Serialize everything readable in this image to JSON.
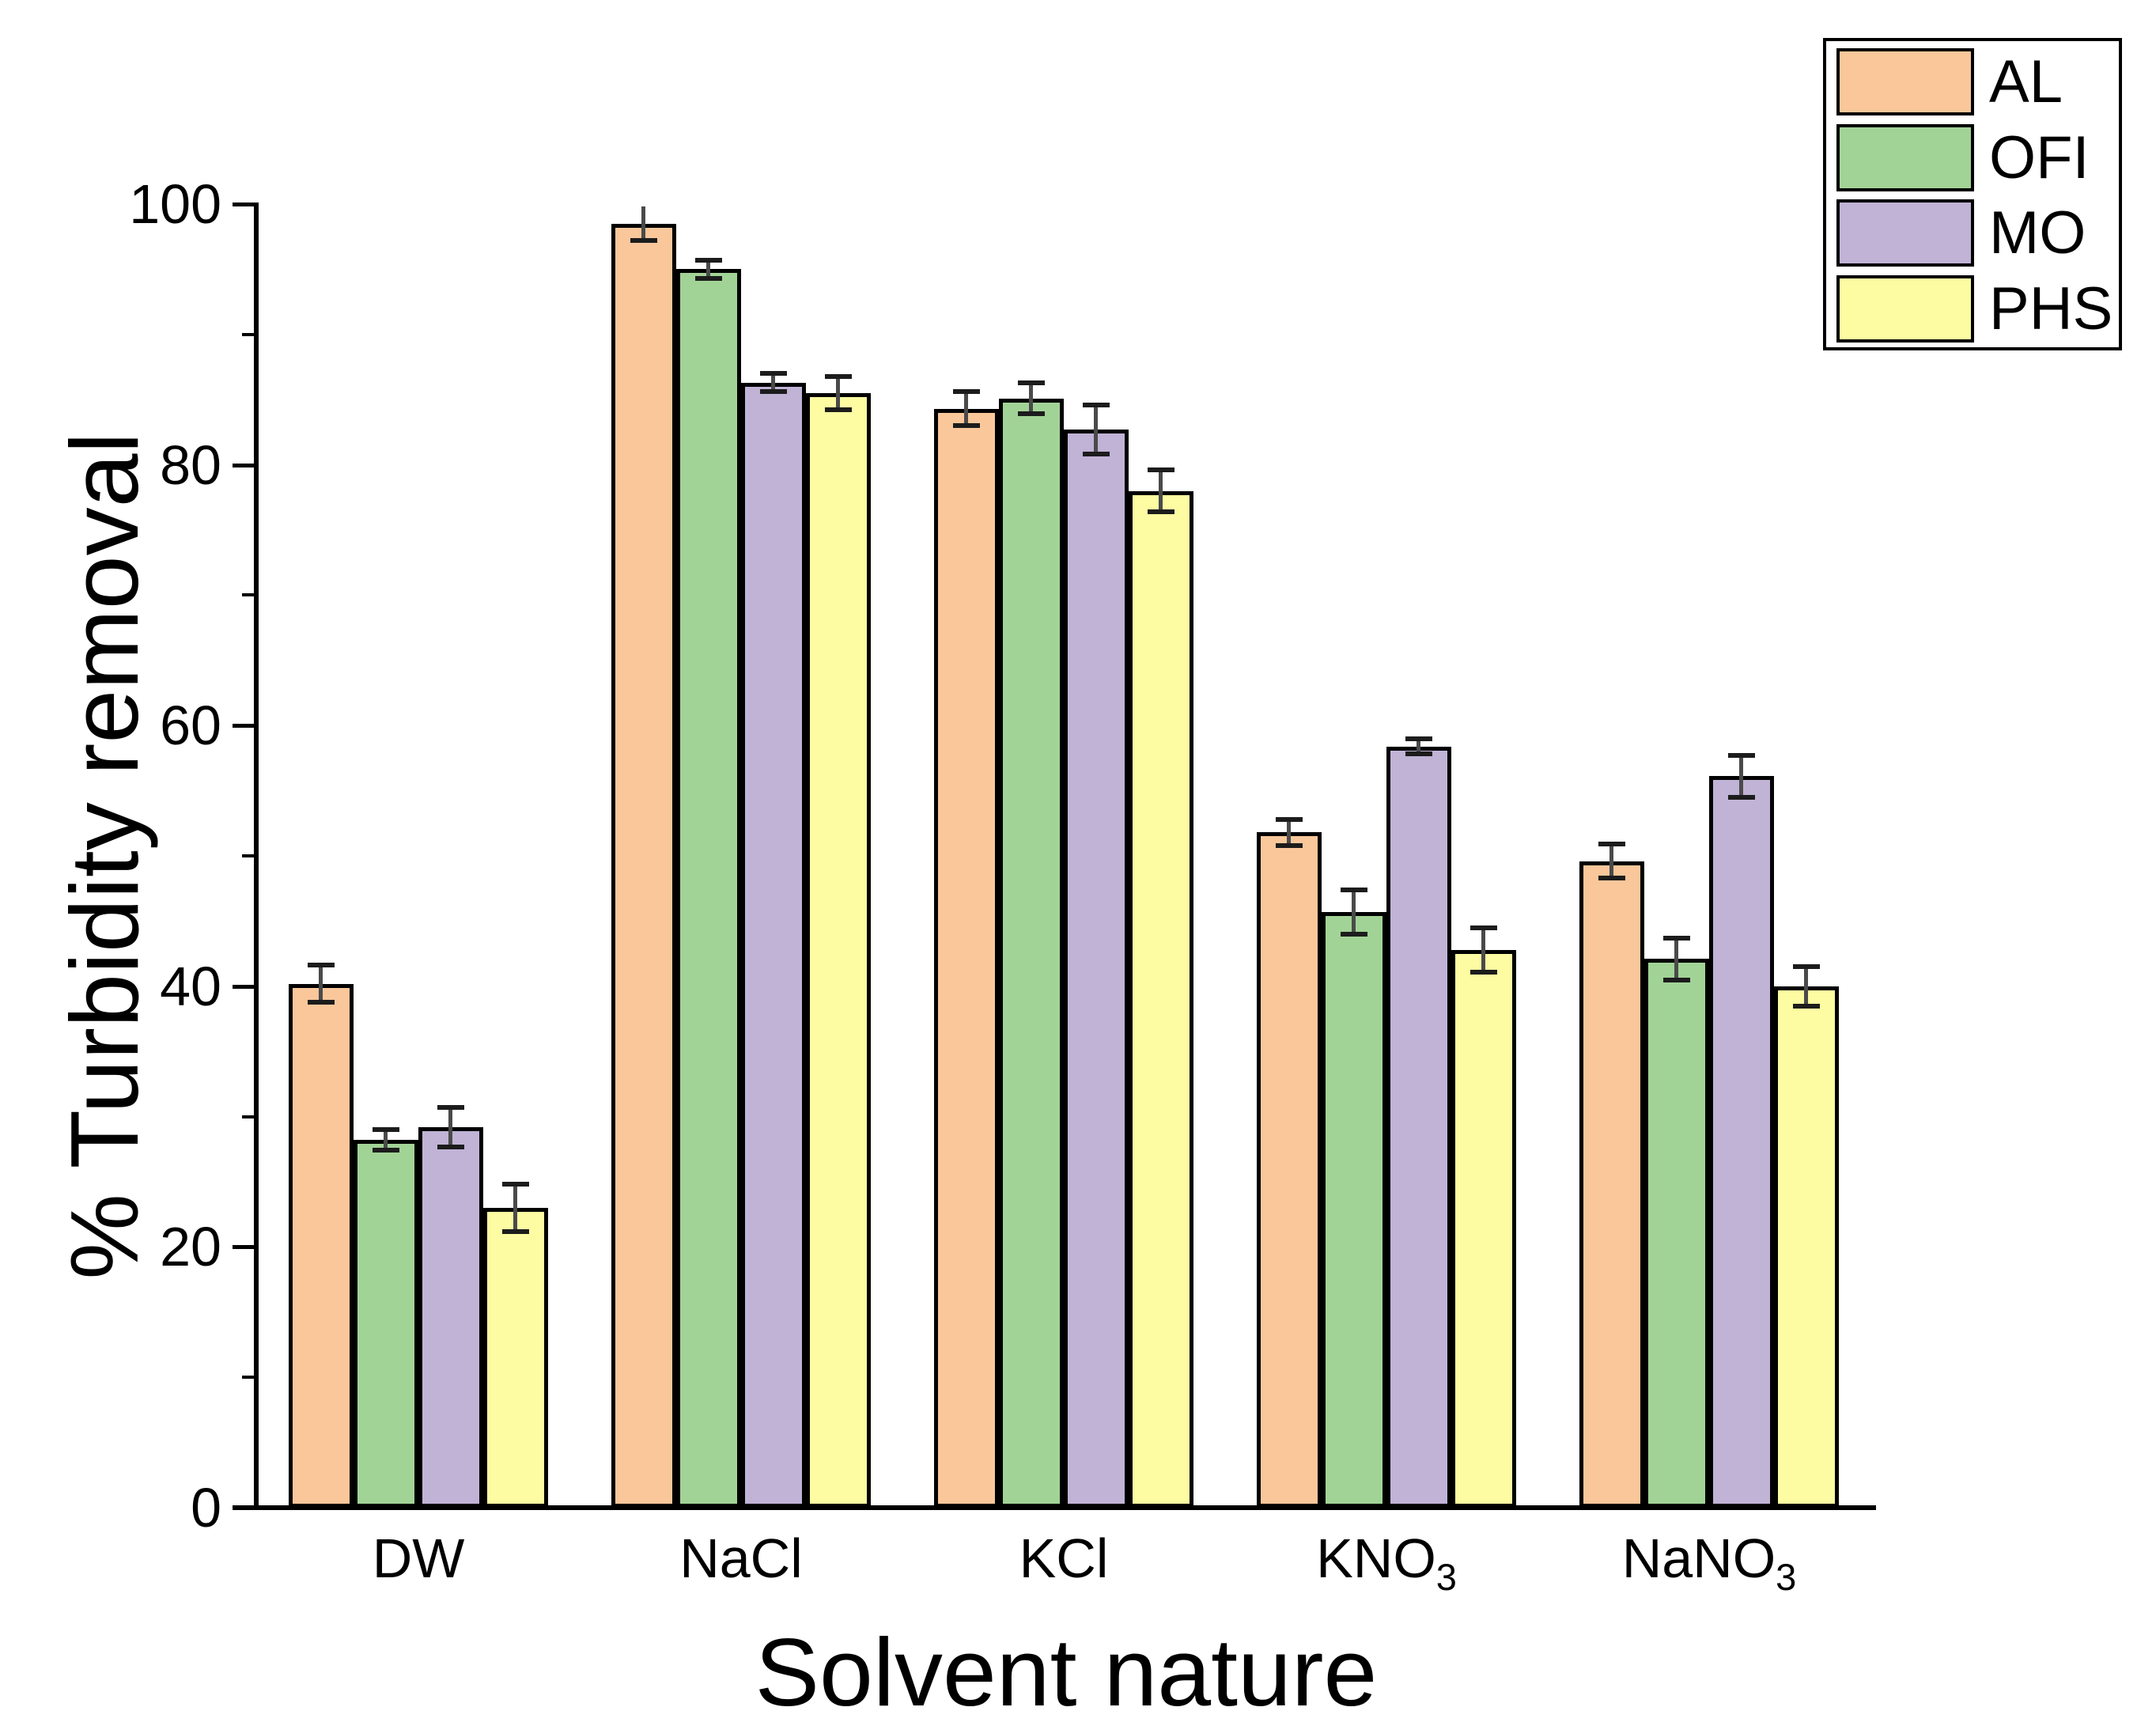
{
  "chart_data": {
    "type": "bar",
    "title": "",
    "xlabel": "Solvent nature",
    "ylabel": "% Turbidity removal",
    "categories": [
      {
        "base": "DW",
        "sub": ""
      },
      {
        "base": "NaCl",
        "sub": ""
      },
      {
        "base": "KCl",
        "sub": ""
      },
      {
        "base": "KNO",
        "sub": "3"
      },
      {
        "base": "NaNO",
        "sub": "3"
      }
    ],
    "series": [
      {
        "name": "AL",
        "color": "#F9C79A",
        "values": [
          40.2,
          98.5,
          84.3,
          51.8,
          49.6
        ],
        "errors": [
          1.4,
          1.3,
          1.3,
          1.0,
          1.3
        ]
      },
      {
        "name": "OFI",
        "color": "#A2D396",
        "values": [
          28.2,
          95.0,
          85.1,
          45.7,
          42.1
        ],
        "errors": [
          0.8,
          0.7,
          1.2,
          1.7,
          1.6
        ]
      },
      {
        "name": "MO",
        "color": "#C0B3D6",
        "values": [
          29.2,
          86.3,
          82.7,
          58.4,
          56.1
        ],
        "errors": [
          1.5,
          0.7,
          1.9,
          0.6,
          1.6
        ]
      },
      {
        "name": "PHS",
        "color": "#FDFCA2",
        "values": [
          23.0,
          85.5,
          78.0,
          42.8,
          40.0
        ],
        "errors": [
          1.8,
          1.3,
          1.6,
          1.7,
          1.5
        ]
      }
    ],
    "ylim": [
      0,
      100
    ],
    "y_major_ticks": [
      0,
      20,
      40,
      60,
      80,
      100
    ],
    "y_minor_ticks": [
      10,
      30,
      50,
      70,
      90
    ],
    "grid": false,
    "legend_position": "top-right",
    "bar_edge_color": "#000000",
    "error_bar_color": "#4a4a4a",
    "axis_color": "#000000"
  }
}
